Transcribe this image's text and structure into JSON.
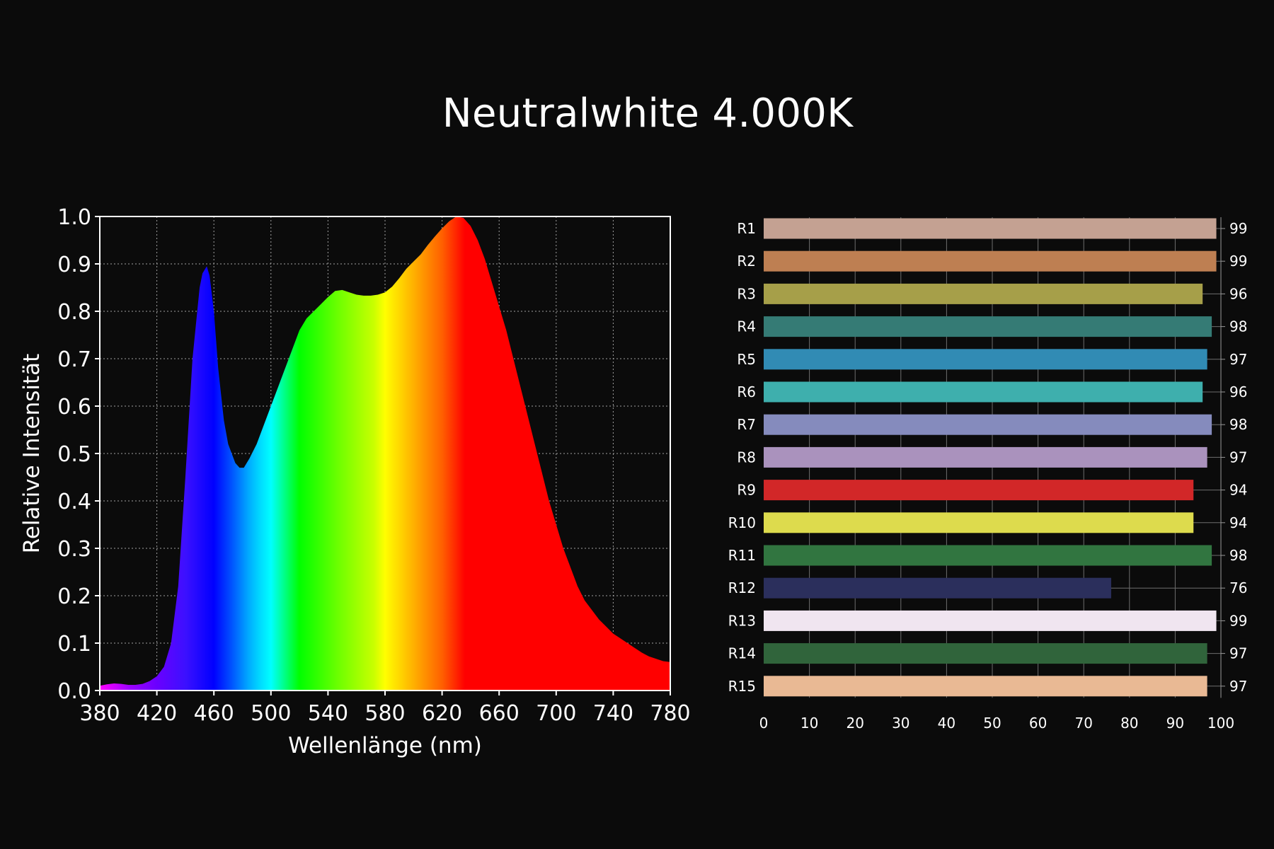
{
  "title": "Neutralwhite 4.000K",
  "colors": {
    "background": "#0b0b0b",
    "grid": "#a0a0a0",
    "frame": "#ffffff"
  },
  "chart_data": [
    {
      "type": "area",
      "xlabel": "Wellenlänge (nm)",
      "ylabel": "Relative Intensität",
      "xlim": [
        380,
        780
      ],
      "ylim": [
        0,
        1.0
      ],
      "xticks": [
        380,
        420,
        460,
        500,
        540,
        580,
        620,
        660,
        700,
        740,
        780
      ],
      "yticks": [
        "0.0",
        "0.1",
        "0.2",
        "0.3",
        "0.4",
        "0.5",
        "0.6",
        "0.7",
        "0.8",
        "0.9",
        "1.0"
      ],
      "grid": true,
      "fill": "visible-spectrum color gradient",
      "x": [
        380,
        385,
        390,
        395,
        400,
        405,
        410,
        415,
        420,
        425,
        430,
        435,
        440,
        445,
        450,
        452,
        455,
        457,
        460,
        463,
        467,
        470,
        475,
        478,
        481,
        485,
        490,
        495,
        500,
        505,
        510,
        515,
        520,
        525,
        530,
        535,
        540,
        545,
        550,
        555,
        560,
        565,
        570,
        575,
        580,
        585,
        590,
        595,
        600,
        605,
        610,
        615,
        620,
        625,
        630,
        635,
        640,
        645,
        650,
        655,
        660,
        665,
        670,
        675,
        680,
        685,
        690,
        695,
        700,
        705,
        710,
        715,
        720,
        725,
        730,
        735,
        740,
        745,
        750,
        755,
        760,
        765,
        770,
        775,
        780
      ],
      "y": [
        0.01,
        0.013,
        0.015,
        0.014,
        0.012,
        0.012,
        0.014,
        0.02,
        0.03,
        0.05,
        0.1,
        0.22,
        0.45,
        0.7,
        0.85,
        0.88,
        0.895,
        0.875,
        0.8,
        0.68,
        0.57,
        0.52,
        0.48,
        0.47,
        0.47,
        0.49,
        0.52,
        0.56,
        0.6,
        0.64,
        0.68,
        0.72,
        0.76,
        0.785,
        0.8,
        0.815,
        0.83,
        0.843,
        0.845,
        0.84,
        0.835,
        0.833,
        0.833,
        0.835,
        0.84,
        0.852,
        0.87,
        0.89,
        0.905,
        0.92,
        0.94,
        0.958,
        0.975,
        0.99,
        1.0,
        0.997,
        0.98,
        0.95,
        0.91,
        0.86,
        0.81,
        0.76,
        0.7,
        0.64,
        0.58,
        0.52,
        0.46,
        0.4,
        0.35,
        0.3,
        0.26,
        0.22,
        0.19,
        0.17,
        0.15,
        0.135,
        0.12,
        0.11,
        0.1,
        0.09,
        0.08,
        0.072,
        0.067,
        0.062,
        0.06
      ]
    },
    {
      "type": "bar",
      "orientation": "horizontal",
      "xlim": [
        0,
        100
      ],
      "xticks": [
        "0",
        "10",
        "20",
        "30",
        "40",
        "50",
        "60",
        "70",
        "80",
        "90",
        "100"
      ],
      "categories": [
        "R1",
        "R2",
        "R3",
        "R4",
        "R5",
        "R6",
        "R7",
        "R8",
        "R9",
        "R10",
        "R11",
        "R12",
        "R13",
        "R14",
        "R15"
      ],
      "values": [
        99,
        99,
        96,
        98,
        97,
        96,
        98,
        97,
        94,
        94,
        98,
        76,
        99,
        97,
        97
      ],
      "value_labels": [
        "99",
        "99",
        "96",
        "98",
        "97",
        "96",
        "98",
        "97",
        "94",
        "94",
        "98",
        "76",
        "99",
        "97",
        "97"
      ],
      "bar_colors": [
        "#c4a192",
        "#be7f52",
        "#a69f49",
        "#357b75",
        "#318bb4",
        "#3eafad",
        "#858bbd",
        "#aa92bd",
        "#d22728",
        "#dddb4d",
        "#317540",
        "#2b2f5c",
        "#f0e5f0",
        "#30643b",
        "#e9b994"
      ],
      "grid": true,
      "value_labels_position": "right"
    }
  ]
}
